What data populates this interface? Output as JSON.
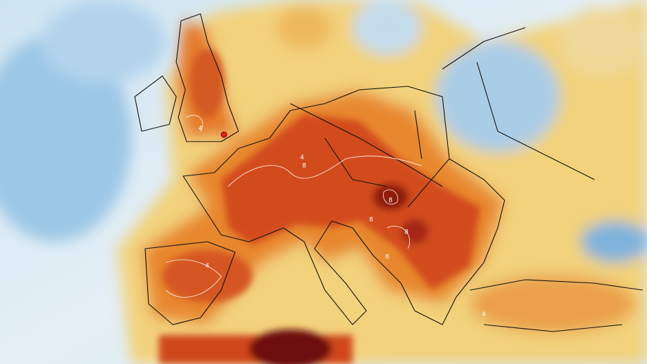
{
  "map": {
    "contour_labels": [
      "4",
      "4",
      "8",
      "8",
      "8",
      "8",
      "8",
      "4",
      "4"
    ]
  }
}
